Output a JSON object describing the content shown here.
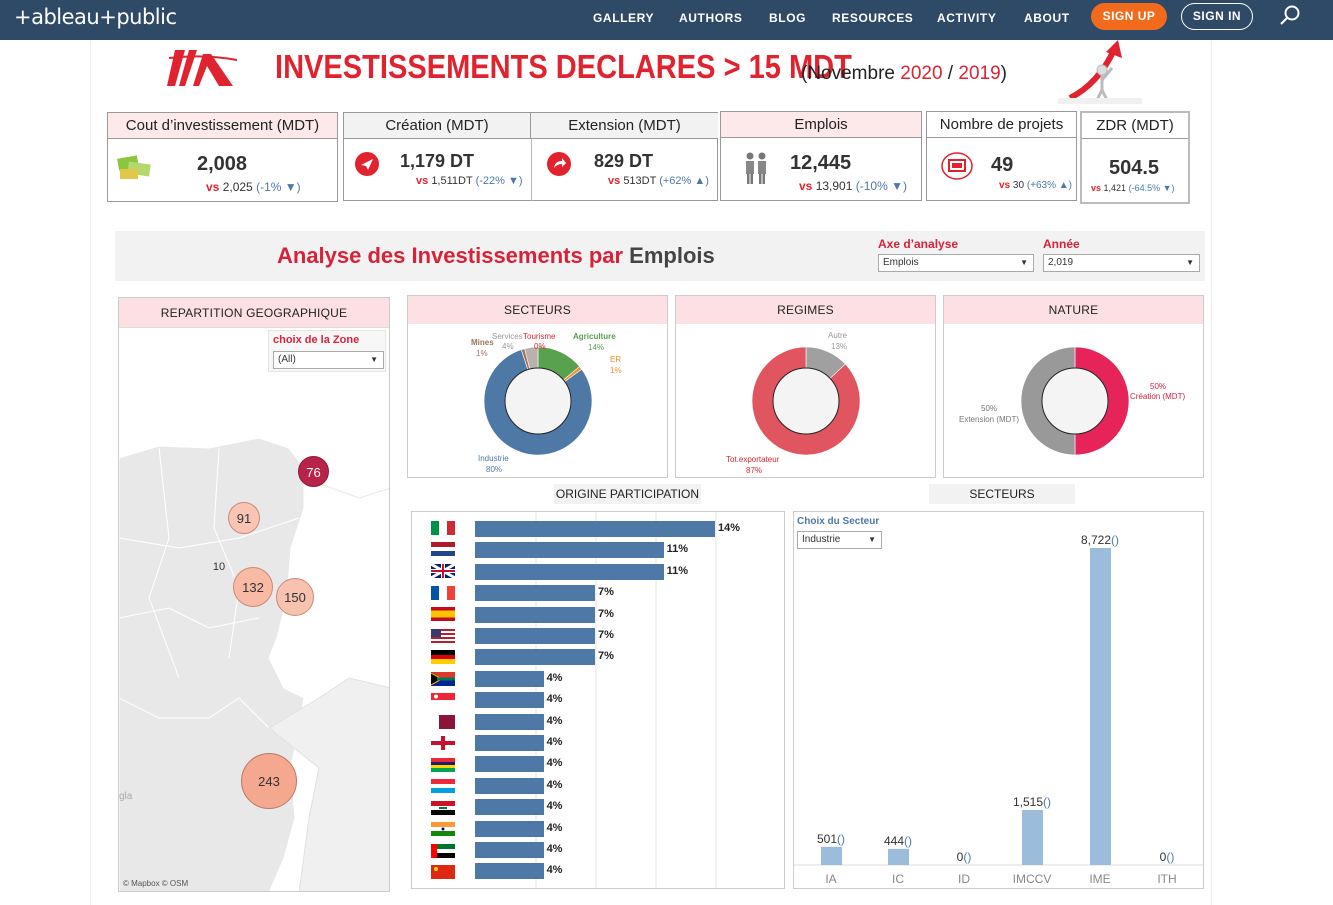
{
  "nav": {
    "logo": "+ableau+public",
    "links": [
      "GALLERY",
      "AUTHORS",
      "BLOG",
      "RESOURCES",
      "ACTIVITY",
      "ABOUT"
    ],
    "signup": "SIGN UP",
    "signin": "SIGN IN"
  },
  "header": {
    "title": "INVESTISSEMENTS DECLARES > 15 MDT",
    "subtitle_prefix": "(Novembre ",
    "year1": "2020",
    "sep": " / ",
    "year2": "2019",
    "subtitle_suffix": ")"
  },
  "kpis": {
    "cout": {
      "title": "Cout d’investissement (MDT)",
      "value": "2,008",
      "vs": "vs",
      "prev": "2,025",
      "pct": "(-1% ▼)"
    },
    "creation": {
      "title": "Création (MDT)",
      "value": "1,179 DT",
      "vs": "vs",
      "prev": "1,511DT",
      "pct": "(-22% ▼)"
    },
    "extension": {
      "title": "Extension (MDT)",
      "value": "829 DT",
      "vs": "vs",
      "prev": "513DT",
      "pct": "(+62% ▲)"
    },
    "emplois": {
      "title": "Emplois",
      "value": "12,445",
      "vs": "vs",
      "prev": "13,901",
      "pct": "(-10% ▼)"
    },
    "projets": {
      "title": "Nombre de projets",
      "value": "49",
      "vs": "vs",
      "prev": "30",
      "pct": "(+63% ▲)"
    },
    "zdr": {
      "title": "ZDR (MDT)",
      "value": "504.5",
      "vs": "vs",
      "prev": "1,421",
      "pct": "(-64.5% ▼)"
    }
  },
  "analyse": {
    "title_prefix": "Analyse des Investissements par ",
    "title_dim": "Emplois",
    "axe_label": "Axe d’analyse",
    "axe_value": "Emplois",
    "annee_label": "Année",
    "annee_value": "2,019"
  },
  "geo": {
    "title": "REPARTITION GEOGRAPHIQUE",
    "zone_label": "choix de la Zone",
    "zone_value": "(All)",
    "bubbles": [
      "76",
      "91",
      "10",
      "132",
      "150",
      "243"
    ],
    "map_text": "gla",
    "attribution": "© Mapbox  © OSM"
  },
  "secteurs_donut": {
    "title": "SECTEURS",
    "labels": [
      {
        "name": "Services",
        "pct": "4%"
      },
      {
        "name": "Tourisme",
        "pct": "0%"
      },
      {
        "name": "Agriculture",
        "pct": "14%"
      },
      {
        "name": "ER",
        "pct": "1%"
      },
      {
        "name": "Mines",
        "pct": "1%"
      },
      {
        "name": "Industrie",
        "pct": "80%"
      }
    ]
  },
  "regimes_donut": {
    "title": "REGIMES",
    "labels": [
      {
        "name": "Autre",
        "pct": "13%"
      },
      {
        "name": "Tot.exportateur",
        "pct": "87%"
      }
    ]
  },
  "nature_donut": {
    "title": "NATURE",
    "labels": [
      {
        "pct": "50%",
        "name": "Création (MDT)"
      },
      {
        "pct": "50%",
        "name": "Extension (MDT)"
      }
    ]
  },
  "origine": {
    "title": "ORIGINE PARTICIPATION",
    "values": [
      "14%",
      "11%",
      "11%",
      "7%",
      "7%",
      "7%",
      "7%",
      "4%",
      "4%",
      "4%",
      "4%",
      "4%",
      "4%",
      "4%",
      "4%",
      "4%",
      "4%"
    ]
  },
  "secteurs_bar": {
    "title": "SECTEURS",
    "choice_label": "Choix du Secteur",
    "choice_value": "Industrie"
  },
  "colors": {
    "nav": "#2e4a67",
    "accent": "#e0232f",
    "bar": "#4e79a7",
    "lightbar": "#9bbcdb",
    "signup": "#f26b1d"
  },
  "chart_data": [
    {
      "type": "pie",
      "title": "SECTEURS",
      "categories": [
        "Industrie",
        "Agriculture",
        "ER",
        "Mines",
        "Services",
        "Tourisme"
      ],
      "values": [
        80,
        14,
        1,
        1,
        4,
        0
      ]
    },
    {
      "type": "pie",
      "title": "REGIMES",
      "categories": [
        "Tot.exportateur",
        "Autre"
      ],
      "values": [
        87,
        13
      ]
    },
    {
      "type": "pie",
      "title": "NATURE",
      "categories": [
        "Création (MDT)",
        "Extension (MDT)"
      ],
      "values": [
        50,
        50
      ]
    },
    {
      "type": "bar",
      "title": "ORIGINE PARTICIPATION",
      "orientation": "horizontal",
      "values": [
        14,
        11,
        11,
        7,
        7,
        7,
        7,
        4,
        4,
        4,
        4,
        4,
        4,
        4,
        4,
        4,
        4
      ]
    },
    {
      "type": "bar",
      "title": "SECTEURS",
      "categories": [
        "IA",
        "IC",
        "ID",
        "IMCCV",
        "IME",
        "ITH"
      ],
      "values": [
        501,
        444,
        0,
        1515,
        8722,
        0
      ],
      "value_labels": [
        "501()",
        "444()",
        "0()",
        "1,515()",
        "8,722()",
        "0()"
      ]
    }
  ]
}
